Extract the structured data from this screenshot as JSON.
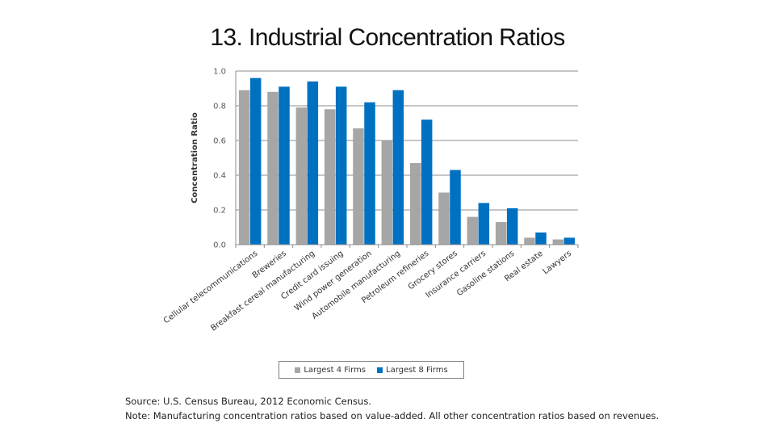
{
  "slide": {
    "title": "13. Industrial Concentration Ratios",
    "source": "Source: U.S. Census Bureau, 2012 Economic Census.",
    "note": "Note: Manufacturing concentration ratios based on value-added. All other concentration ratios based on revenues."
  },
  "chart_data": {
    "type": "bar",
    "ylabel": "Concentration Ratio",
    "ylim": [
      0,
      1.0
    ],
    "yticks": [
      "0.0",
      "0.2",
      "0.4",
      "0.6",
      "0.8",
      "1.0"
    ],
    "grid": true,
    "legend_position": "bottom",
    "categories": [
      "Cellular telecommunications",
      "Breweries",
      "Breakfast cereal manufacturing",
      "Credit card issuing",
      "Wind power generation",
      "Automobile manufacturing",
      "Petroleum refineries",
      "Grocery stores",
      "Insurance carriers",
      "Gasoline stations",
      "Real estate",
      "Lawyers"
    ],
    "series": [
      {
        "name": "Largest 4 Firms",
        "color": "#a6a6a6",
        "values": [
          0.89,
          0.88,
          0.79,
          0.78,
          0.67,
          0.6,
          0.47,
          0.3,
          0.16,
          0.13,
          0.04,
          0.03
        ]
      },
      {
        "name": "Largest 8 Firms",
        "color": "#0070c0",
        "values": [
          0.96,
          0.91,
          0.94,
          0.91,
          0.82,
          0.89,
          0.72,
          0.43,
          0.24,
          0.21,
          0.07,
          0.04
        ]
      }
    ]
  }
}
